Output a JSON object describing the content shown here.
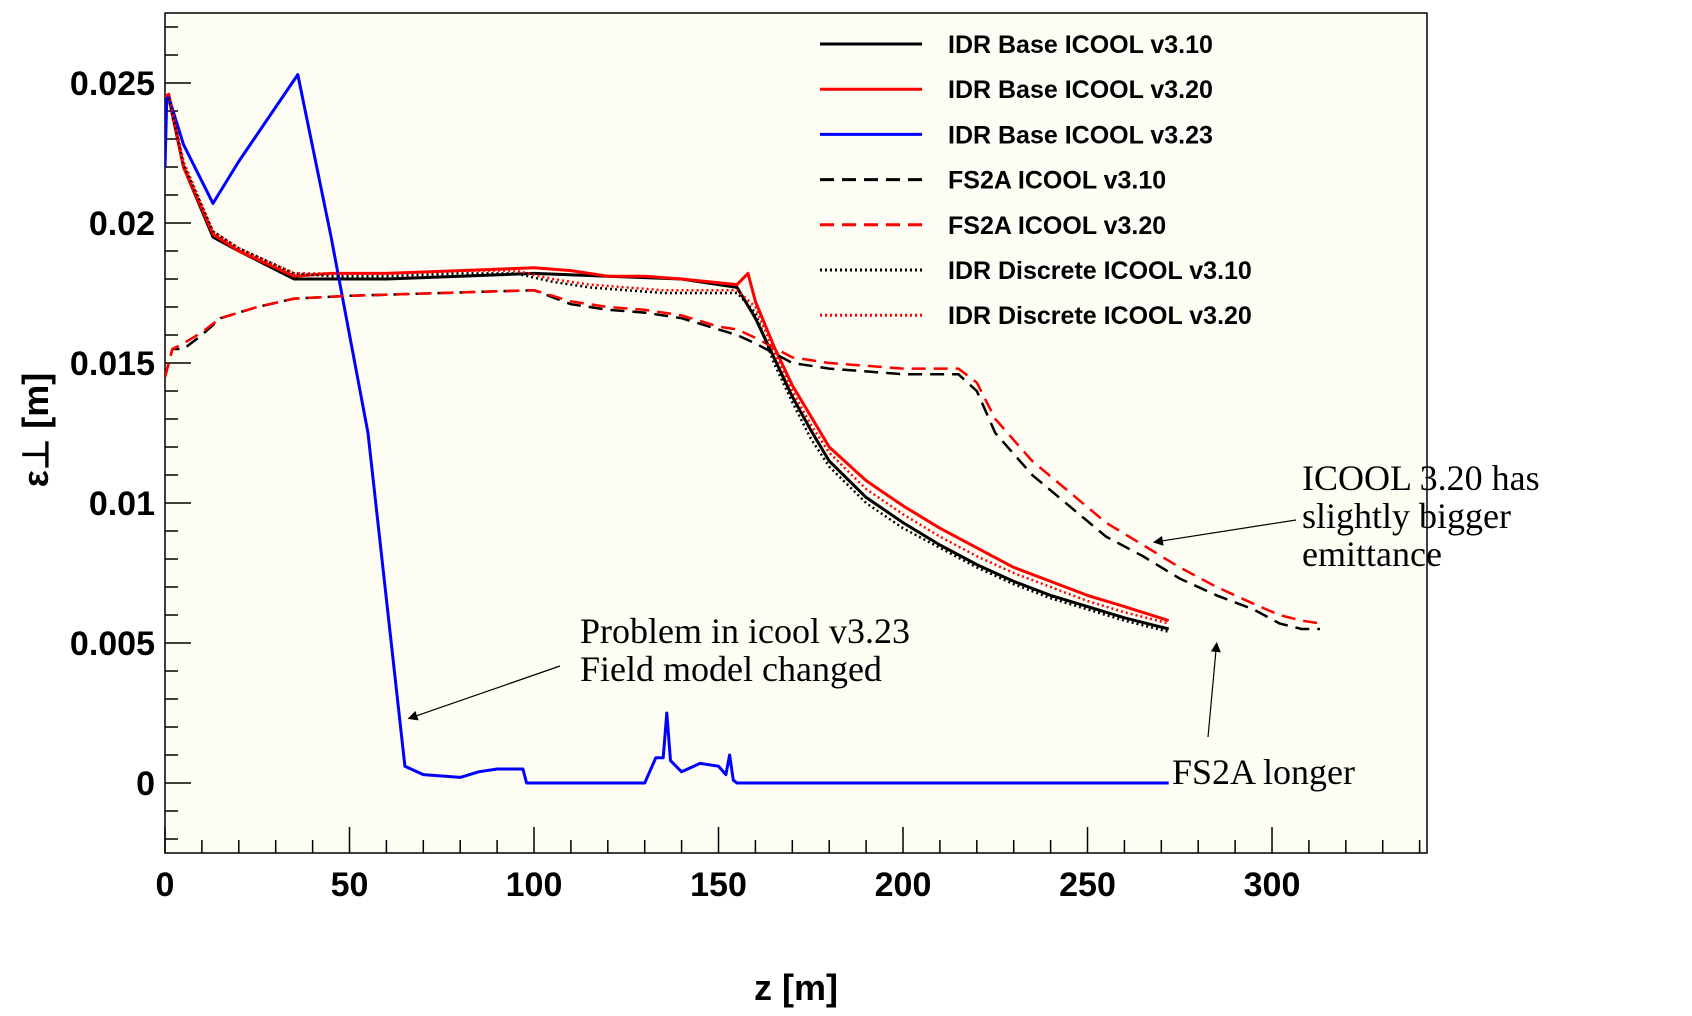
{
  "chart_data": {
    "type": "line",
    "xlabel": "z [m]",
    "ylabel": "ε⊥ [m]",
    "xlim": [
      0,
      342
    ],
    "ylim": [
      -0.0025,
      0.0275
    ],
    "x_ticks": [
      0,
      50,
      100,
      150,
      200,
      250,
      300
    ],
    "x_tick_labels": [
      "0",
      "50",
      "100",
      "150",
      "200",
      "250",
      "300"
    ],
    "y_ticks": [
      0,
      0.005,
      0.01,
      0.015,
      0.02,
      0.025
    ],
    "y_tick_labels": [
      "0",
      "0.005",
      "0.01",
      "0.015",
      "0.02",
      "0.025"
    ],
    "grid": false,
    "legend_position": "top-right",
    "background": "#fdfdf3",
    "series": [
      {
        "name": "IDR Base ICOOL v3.10",
        "color": "#000000",
        "dash": "solid",
        "x": [
          0,
          1,
          5,
          13,
          20,
          35,
          45,
          60,
          80,
          100,
          120,
          140,
          155,
          160,
          165,
          170,
          175,
          180,
          190,
          200,
          210,
          220,
          230,
          240,
          250,
          260,
          272
        ],
        "y": [
          0.0245,
          0.0245,
          0.022,
          0.0195,
          0.019,
          0.018,
          0.018,
          0.018,
          0.0181,
          0.0182,
          0.0181,
          0.018,
          0.0177,
          0.0166,
          0.0152,
          0.0138,
          0.0126,
          0.0115,
          0.0102,
          0.0093,
          0.0085,
          0.0078,
          0.0072,
          0.0067,
          0.0063,
          0.0059,
          0.0055
        ]
      },
      {
        "name": "IDR Base ICOOL v3.20",
        "color": "#ff0000",
        "dash": "solid",
        "x": [
          0,
          1,
          5,
          13,
          20,
          35,
          45,
          60,
          80,
          100,
          110,
          120,
          130,
          140,
          155,
          158,
          160,
          165,
          170,
          175,
          180,
          190,
          200,
          210,
          220,
          230,
          240,
          250,
          260,
          272
        ],
        "y": [
          0.0245,
          0.0246,
          0.022,
          0.0196,
          0.019,
          0.0181,
          0.0182,
          0.0182,
          0.0183,
          0.0184,
          0.0183,
          0.0181,
          0.0181,
          0.018,
          0.0178,
          0.0182,
          0.0172,
          0.0156,
          0.0142,
          0.0131,
          0.012,
          0.0108,
          0.0099,
          0.0091,
          0.0084,
          0.0077,
          0.0072,
          0.0067,
          0.0063,
          0.0058
        ]
      },
      {
        "name": "IDR Base ICOOL v3.23",
        "color": "#0000ff",
        "dash": "solid",
        "x": [
          0,
          0.5,
          1,
          5,
          13,
          20,
          36,
          45,
          55,
          65,
          70,
          80,
          85,
          90,
          95,
          97,
          98,
          100,
          110,
          120,
          130,
          133,
          135,
          136,
          137,
          140,
          145,
          150,
          152,
          153,
          154,
          155,
          170,
          200,
          250,
          272
        ],
        "y": [
          0.022,
          0.0245,
          0.0245,
          0.0228,
          0.0207,
          0.0222,
          0.0253,
          0.0195,
          0.0125,
          0.0006,
          0.0003,
          0.0002,
          0.0004,
          0.0005,
          0.0005,
          0.0005,
          0.0,
          0.0,
          0.0,
          0.0,
          0.0,
          0.0009,
          0.0009,
          0.0025,
          0.0008,
          0.0004,
          0.0007,
          0.0006,
          0.0003,
          0.001,
          0.0001,
          0.0,
          0.0,
          0.0,
          0.0,
          0.0
        ]
      },
      {
        "name": "FS2A ICOOL v3.10",
        "color": "#000000",
        "dash": "dashed",
        "x": [
          0,
          2,
          5,
          10,
          15,
          25,
          35,
          50,
          75,
          100,
          110,
          120,
          130,
          140,
          150,
          155,
          160,
          170,
          180,
          190,
          200,
          210,
          215,
          220,
          225,
          235,
          245,
          255,
          265,
          275,
          285,
          295,
          302,
          308,
          313
        ],
        "y": [
          0.0145,
          0.0155,
          0.0155,
          0.016,
          0.0166,
          0.017,
          0.0173,
          0.0174,
          0.0175,
          0.0176,
          0.0171,
          0.0169,
          0.0168,
          0.0166,
          0.0162,
          0.016,
          0.0157,
          0.015,
          0.0148,
          0.0147,
          0.0146,
          0.0146,
          0.0146,
          0.014,
          0.0125,
          0.011,
          0.0099,
          0.0088,
          0.0081,
          0.0073,
          0.0067,
          0.0062,
          0.0057,
          0.0055,
          0.0055
        ]
      },
      {
        "name": "FS2A ICOOL v3.20",
        "color": "#ff0000",
        "dash": "dashed",
        "x": [
          0,
          2,
          5,
          10,
          15,
          25,
          35,
          50,
          75,
          100,
          110,
          120,
          130,
          140,
          150,
          155,
          160,
          170,
          180,
          190,
          200,
          210,
          215,
          220,
          225,
          235,
          245,
          255,
          265,
          275,
          285,
          295,
          302,
          308,
          313
        ],
        "y": [
          0.0145,
          0.0155,
          0.0157,
          0.0161,
          0.0166,
          0.017,
          0.0173,
          0.0174,
          0.0175,
          0.0176,
          0.0172,
          0.017,
          0.0169,
          0.0167,
          0.0163,
          0.0162,
          0.0159,
          0.0152,
          0.015,
          0.0149,
          0.0148,
          0.0148,
          0.0148,
          0.0143,
          0.013,
          0.0115,
          0.0104,
          0.0093,
          0.0085,
          0.0077,
          0.007,
          0.0064,
          0.006,
          0.0058,
          0.0057
        ]
      },
      {
        "name": "IDR Discrete ICOOL v3.10",
        "color": "#000000",
        "dash": "dotted",
        "x": [
          0,
          1,
          5,
          13,
          20,
          35,
          45,
          60,
          80,
          95,
          105,
          115,
          125,
          135,
          145,
          155,
          160,
          165,
          170,
          175,
          180,
          190,
          200,
          210,
          220,
          230,
          240,
          250,
          260,
          272
        ],
        "y": [
          0.0245,
          0.0245,
          0.0221,
          0.0197,
          0.0191,
          0.0182,
          0.0181,
          0.0181,
          0.0182,
          0.0182,
          0.0179,
          0.0177,
          0.0176,
          0.0175,
          0.0175,
          0.0175,
          0.0168,
          0.015,
          0.0136,
          0.0123,
          0.0113,
          0.01,
          0.0091,
          0.0084,
          0.0077,
          0.0071,
          0.0066,
          0.0062,
          0.0058,
          0.0054
        ]
      },
      {
        "name": "IDR Discrete ICOOL v3.20",
        "color": "#ff0000",
        "dash": "dotted",
        "x": [
          0,
          1,
          5,
          13,
          20,
          35,
          45,
          60,
          80,
          95,
          105,
          115,
          125,
          135,
          145,
          155,
          160,
          165,
          170,
          175,
          180,
          190,
          200,
          210,
          220,
          230,
          240,
          250,
          260,
          272
        ],
        "y": [
          0.0245,
          0.0246,
          0.0222,
          0.0197,
          0.0191,
          0.0182,
          0.0182,
          0.0182,
          0.0183,
          0.0183,
          0.018,
          0.0178,
          0.0177,
          0.0176,
          0.0176,
          0.0176,
          0.017,
          0.0154,
          0.014,
          0.0128,
          0.0118,
          0.0105,
          0.0096,
          0.0088,
          0.0081,
          0.0075,
          0.007,
          0.0065,
          0.0061,
          0.0057
        ]
      }
    ],
    "annotations": [
      {
        "lines": [
          "Problem in icool v3.23",
          "Field model changed"
        ],
        "arrow_to": [
          66,
          0.0023
        ]
      },
      {
        "lines": [
          "ICOOL 3.20 has",
          "slightly bigger",
          "emittance"
        ],
        "arrow_to": [
          268,
          0.0086
        ]
      },
      {
        "lines": [
          "FS2A longer"
        ],
        "arrow_to": [
          285,
          0.005
        ]
      }
    ]
  }
}
